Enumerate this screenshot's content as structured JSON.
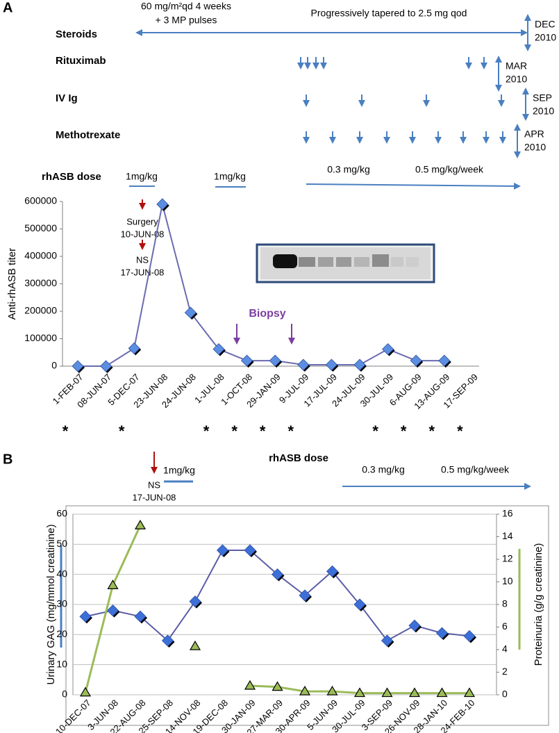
{
  "panel_a": {
    "panel_label": "A",
    "regimen_note_lines": [
      "60 mg/m²qd 4 weeks",
      "+ 3 MP pulses"
    ],
    "taper_note": "Progressively tapered to 2.5 mg qod",
    "drugs": [
      {
        "name": "Steroids",
        "stop": [
          "DEC",
          "2010"
        ]
      },
      {
        "name": "Rituximab",
        "stop": [
          "MAR",
          "2010"
        ]
      },
      {
        "name": "IV Ig",
        "stop": [
          "SEP",
          "2010"
        ]
      },
      {
        "name": "Methotrexate",
        "stop": [
          "APR",
          "2010"
        ]
      }
    ],
    "dose_label": "rhASB  dose",
    "doses": [
      "1mg/kg",
      "1mg/kg",
      "0.3 mg/kg",
      "0.5 mg/kg/week"
    ]
  },
  "chart_data": [
    {
      "type": "line",
      "y_label": "Anti-rhASB titer",
      "categories": [
        "1-FEB-07",
        "08-JUN-07",
        "5-DEC-07",
        "23-JUN-08",
        "24-JUN-08",
        "1-JUL-08",
        "1-OCT-08",
        "29-JAN-09",
        "9-JUL-09",
        "17-JUL-09",
        "24-JUL-09",
        "30-JUL-09",
        "6-AUG-09",
        "13-AUG-09",
        "17-SEP-09"
      ],
      "series": [
        {
          "color": "#6b6bb0",
          "marker": "diamond",
          "marker_color": "#5b8ee0",
          "values": [
            0,
            0,
            65000,
            590000,
            195000,
            62000,
            20000,
            20000,
            5000,
            5000,
            5000,
            62000,
            20000,
            20000,
            null
          ]
        }
      ],
      "ylim": [
        0,
        600000
      ],
      "yticks": [
        0,
        100000,
        200000,
        300000,
        400000,
        500000,
        600000
      ],
      "grid": false,
      "category_marks": [
        "*",
        null,
        "*",
        null,
        null,
        "*",
        "*",
        "*",
        "*",
        null,
        null,
        "*",
        "*",
        "*",
        "*"
      ],
      "annotations": [
        "Surgery",
        "10-JUN-08",
        "NS",
        "17-JUN-08",
        "Biopsy"
      ]
    },
    {
      "type": "line",
      "panel_label": "B",
      "dose_label": "rhASB  dose",
      "doses": [
        "1mg/kg",
        "0.3 mg/kg",
        "0.5 mg/kg/week"
      ],
      "annotations": [
        "NS",
        "17-JUN-08"
      ],
      "y_label": "Urinary GAG (mg/mmol creatinine)",
      "y2_label": "Proteinuria (g/g creatinine)",
      "categories": [
        "10-DEC-07",
        "3-JUN-08",
        "22-AUG-08",
        "25-SEP-08",
        "14-NOV-08",
        "19-DEC-08",
        "30-JAN-09",
        "27-MAR-09",
        "30-APR-09",
        "5-JUN-09",
        "30-JUL-09",
        "3-SEP-09",
        "26-NOV-09",
        "28-JAN-10",
        "24-FEB-10"
      ],
      "series": [
        {
          "color": "#5b5ea6",
          "marker": "diamond",
          "marker_color": "#3c6fd8",
          "values": [
            26,
            28,
            26,
            18,
            31,
            48,
            48,
            40,
            33,
            41,
            30,
            18,
            23,
            20.5,
            19.5
          ]
        },
        {
          "color": "#9bbb59",
          "marker": "triangle",
          "marker_color": "#9bbb59",
          "axis": "y2",
          "values": [
            0.2,
            9.7,
            15,
            null,
            4.3,
            null,
            0.8,
            0.7,
            0.3,
            0.3,
            0.15,
            0.15,
            0.15,
            0.15,
            0.15
          ]
        }
      ],
      "ylim": [
        0,
        60
      ],
      "yticks": [
        0,
        10,
        20,
        30,
        40,
        50,
        60
      ],
      "y2lim": [
        0,
        16
      ],
      "y2ticks": [
        0,
        2,
        4,
        6,
        8,
        10,
        12,
        14,
        16
      ],
      "grid": true
    }
  ]
}
